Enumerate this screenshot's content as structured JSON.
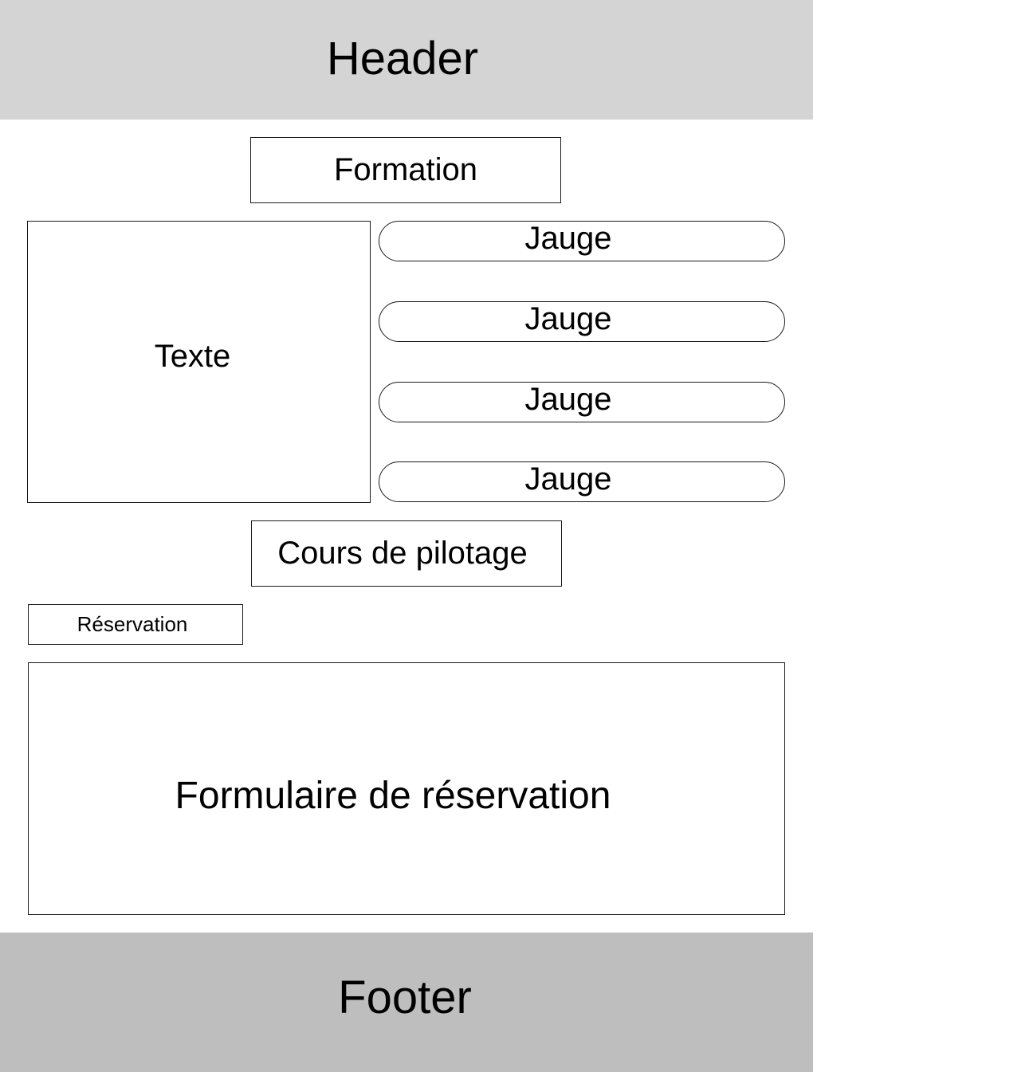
{
  "header": {
    "label": "Header"
  },
  "formation": {
    "label": "Formation"
  },
  "texte": {
    "label": "Texte"
  },
  "gauges": [
    {
      "label": "Jauge"
    },
    {
      "label": "Jauge"
    },
    {
      "label": "Jauge"
    },
    {
      "label": "Jauge"
    }
  ],
  "cours": {
    "label": "Cours de pilotage"
  },
  "reservation": {
    "label": "Réservation"
  },
  "form": {
    "label": "Formulaire de réservation"
  },
  "footer": {
    "label": "Footer"
  },
  "colors": {
    "header_bg": "#d4d4d4",
    "footer_bg": "#bebebe",
    "border": "#1a1a1a"
  }
}
